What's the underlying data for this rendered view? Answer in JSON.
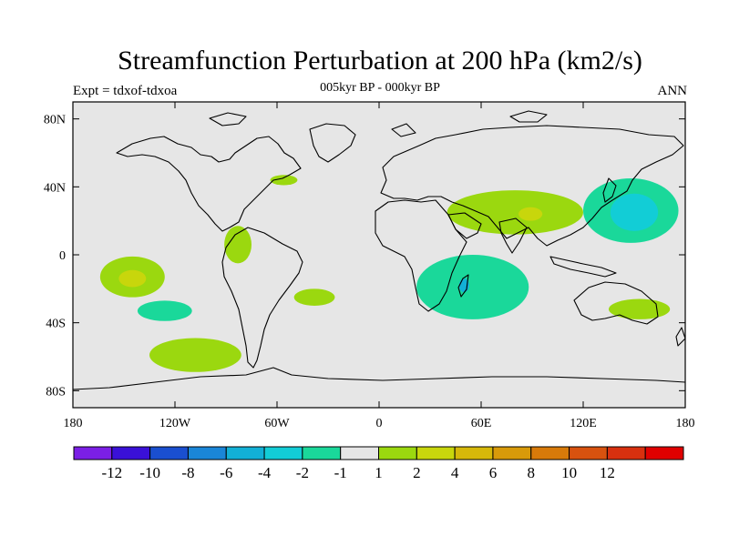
{
  "map": {
    "title": "Streamfunction Perturbation at 200 hPa (km2/s)",
    "subtitle": "005kyr BP - 000kyr BP",
    "left_label": "Expt = tdxof-tdxoa",
    "right_label": "ANN",
    "projection": "cylindrical-equidistant",
    "background_color": "#e6e6e6",
    "lon_ticks": [
      "180",
      "120W",
      "60W",
      "0",
      "60E",
      "120E",
      "180"
    ],
    "lat_ticks": [
      "80N",
      "40N",
      "0",
      "40S",
      "80S"
    ]
  },
  "colorbar": {
    "colors": [
      "#7b1fe6",
      "#3a10d8",
      "#1a4fd0",
      "#1a86d8",
      "#12b0d6",
      "#12cdd6",
      "#1ad89a",
      "#e6e6e6",
      "#9bd80f",
      "#c8d60c",
      "#d6b80a",
      "#d89a0a",
      "#d87a0a",
      "#d8520f",
      "#d8300f",
      "#e00000"
    ],
    "labels": [
      "-12",
      "-10",
      "-8",
      "-6",
      "-4",
      "-2",
      "-1",
      "1",
      "2",
      "4",
      "6",
      "8",
      "10",
      "12"
    ]
  },
  "anomalies": [
    {
      "name": "north-pacific-east-low",
      "lon": -145,
      "lat": -13,
      "rlon": 19,
      "rlat": 12,
      "color": "#9bd80f"
    },
    {
      "name": "north-pacific-east-low-core",
      "lon": -145,
      "lat": -14,
      "rlon": 8,
      "rlat": 5,
      "color": "#c8d60c"
    },
    {
      "name": "south-pacific-teal",
      "lon": -126,
      "lat": -33,
      "rlon": 16,
      "rlat": 6,
      "color": "#1ad89a"
    },
    {
      "name": "south-pacific-green",
      "lon": -108,
      "lat": -59,
      "rlon": 27,
      "rlat": 10,
      "color": "#9bd80f"
    },
    {
      "name": "central-america-green",
      "lon": -83,
      "lat": 6,
      "rlon": 8,
      "rlat": 11,
      "color": "#9bd80f"
    },
    {
      "name": "south-atlantic-green",
      "lon": -38,
      "lat": -25,
      "rlon": 12,
      "rlat": 5,
      "color": "#9bd80f"
    },
    {
      "name": "north-atlantic-green",
      "lon": -56,
      "lat": 44,
      "rlon": 8,
      "rlat": 3,
      "color": "#9bd80f"
    },
    {
      "name": "asia-green",
      "lon": 80,
      "lat": 25,
      "rlon": 40,
      "rlat": 13,
      "color": "#9bd80f"
    },
    {
      "name": "asia-core",
      "lon": 89,
      "lat": 24,
      "rlon": 7,
      "rlat": 4,
      "color": "#c8d60c"
    },
    {
      "name": "indian-ocean-teal",
      "lon": 55,
      "lat": -19,
      "rlon": 33,
      "rlat": 19,
      "color": "#1ad89a"
    },
    {
      "name": "indian-ocean-core",
      "lon": 50,
      "lat": -18,
      "rlon": 3,
      "rlat": 4,
      "color": "#12b0d6"
    },
    {
      "name": "west-pacific-teal",
      "lon": 148,
      "lat": 26,
      "rlon": 28,
      "rlat": 19,
      "color": "#1ad89a"
    },
    {
      "name": "west-pacific-core",
      "lon": 150,
      "lat": 25,
      "rlon": 14,
      "rlat": 11,
      "color": "#12cdd6"
    },
    {
      "name": "australia-green",
      "lon": 153,
      "lat": -32,
      "rlon": 18,
      "rlat": 6,
      "color": "#9bd80f"
    }
  ]
}
